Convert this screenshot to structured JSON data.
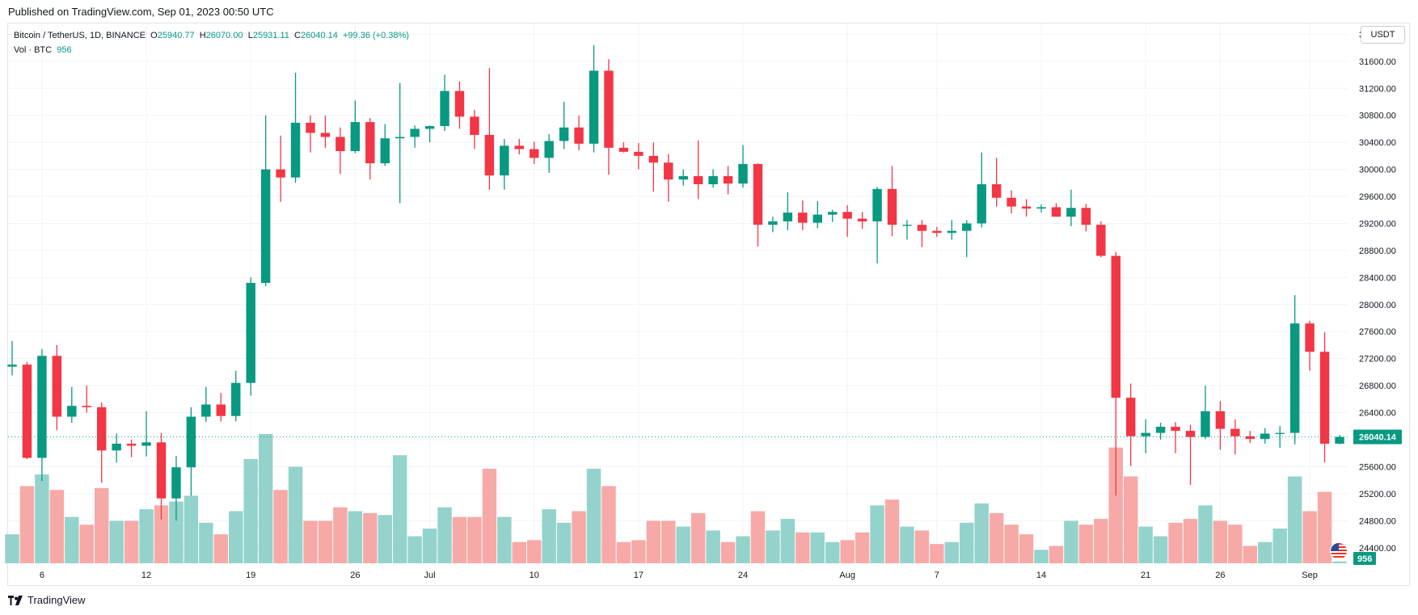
{
  "header": {
    "published": "Published on TradingView.com, Sep 01, 2023 00:50 UTC"
  },
  "legend": {
    "symbol": "Bitcoin / TetherUS, 1D, BINANCE",
    "o_label": "O",
    "o": "25940.77",
    "h_label": "H",
    "h": "26070.00",
    "l_label": "L",
    "l": "25931.11",
    "c_label": "C",
    "c": "26040.14",
    "change": "+99.36 (+0.38%)",
    "vol_label": "Vol · BTC",
    "vol": "956"
  },
  "currency_button": "USDT",
  "price_tag": "26040.14",
  "volume_tag": "956",
  "footer": {
    "brand": "TradingView"
  },
  "colors": {
    "up": "#089981",
    "down": "#f23645",
    "vol_up": "#93d3cb",
    "vol_down": "#f7a9a7",
    "grid": "#f0f3fa",
    "axis_text": "#131722"
  },
  "chart_data": {
    "type": "candlestick",
    "symbol": "Bitcoin / TetherUS",
    "interval": "1D",
    "exchange": "BINANCE",
    "y_axis": {
      "position": "right",
      "ticks": [
        24400,
        24800,
        25200,
        25600,
        26000,
        26400,
        26800,
        27200,
        27600,
        28000,
        28400,
        28800,
        29200,
        29600,
        30000,
        30400,
        30800,
        31200,
        31600,
        32000
      ],
      "tick_labels": [
        "24400.00",
        "24800.00",
        "25200.00",
        "25600.00",
        "26000.00",
        "26400.00",
        "26800.00",
        "27200.00",
        "27600.00",
        "28000.00",
        "28400.00",
        "28800.00",
        "29200.00",
        "29600.00",
        "30000.00",
        "30400.00",
        "30800.00",
        "31200.00",
        "31600.00",
        "32000.00"
      ],
      "range": [
        24170,
        32160
      ]
    },
    "x_axis": {
      "ticks": [
        {
          "index": 2,
          "label": "6"
        },
        {
          "index": 9,
          "label": "12"
        },
        {
          "index": 16,
          "label": "19"
        },
        {
          "index": 23,
          "label": "26"
        },
        {
          "index": 28,
          "label": "Jul"
        },
        {
          "index": 35,
          "label": "10"
        },
        {
          "index": 42,
          "label": "17"
        },
        {
          "index": 49,
          "label": "24"
        },
        {
          "index": 56,
          "label": "Aug"
        },
        {
          "index": 62,
          "label": "7"
        },
        {
          "index": 69,
          "label": "14"
        },
        {
          "index": 76,
          "label": "21"
        },
        {
          "index": 81,
          "label": "26"
        },
        {
          "index": 87,
          "label": "Sep"
        }
      ]
    },
    "grid": true,
    "last_price": 26040.14,
    "candles": [
      {
        "o": 27080,
        "h": 27460,
        "l": 26950,
        "c": 27110
      },
      {
        "o": 27110,
        "h": 27150,
        "l": 25710,
        "c": 25730
      },
      {
        "o": 25730,
        "h": 27340,
        "l": 25390,
        "c": 27240
      },
      {
        "o": 27240,
        "h": 27400,
        "l": 26140,
        "c": 26340
      },
      {
        "o": 26340,
        "h": 26780,
        "l": 26250,
        "c": 26500
      },
      {
        "o": 26500,
        "h": 26800,
        "l": 26400,
        "c": 26480
      },
      {
        "o": 26480,
        "h": 26550,
        "l": 25360,
        "c": 25840
      },
      {
        "o": 25840,
        "h": 26090,
        "l": 25660,
        "c": 25940
      },
      {
        "o": 25940,
        "h": 26000,
        "l": 25740,
        "c": 25910
      },
      {
        "o": 25910,
        "h": 26420,
        "l": 25750,
        "c": 25960
      },
      {
        "o": 25960,
        "h": 26100,
        "l": 24820,
        "c": 25130
      },
      {
        "o": 25130,
        "h": 25760,
        "l": 24800,
        "c": 25590
      },
      {
        "o": 25590,
        "h": 26480,
        "l": 25170,
        "c": 26340
      },
      {
        "o": 26340,
        "h": 26780,
        "l": 26260,
        "c": 26520
      },
      {
        "o": 26520,
        "h": 26690,
        "l": 26270,
        "c": 26350
      },
      {
        "o": 26350,
        "h": 27020,
        "l": 26270,
        "c": 26840
      },
      {
        "o": 26840,
        "h": 28400,
        "l": 26650,
        "c": 28320
      },
      {
        "o": 28320,
        "h": 30800,
        "l": 28270,
        "c": 30000
      },
      {
        "o": 30000,
        "h": 30500,
        "l": 29520,
        "c": 29880
      },
      {
        "o": 29880,
        "h": 31430,
        "l": 29800,
        "c": 30690
      },
      {
        "o": 30690,
        "h": 30800,
        "l": 30250,
        "c": 30540
      },
      {
        "o": 30540,
        "h": 30800,
        "l": 30320,
        "c": 30480
      },
      {
        "o": 30480,
        "h": 30620,
        "l": 29930,
        "c": 30270
      },
      {
        "o": 30270,
        "h": 31020,
        "l": 30240,
        "c": 30700
      },
      {
        "o": 30700,
        "h": 30760,
        "l": 29850,
        "c": 30090
      },
      {
        "o": 30090,
        "h": 30670,
        "l": 30050,
        "c": 30460
      },
      {
        "o": 30460,
        "h": 31280,
        "l": 29500,
        "c": 30480
      },
      {
        "o": 30480,
        "h": 30650,
        "l": 30320,
        "c": 30600
      },
      {
        "o": 30600,
        "h": 30650,
        "l": 30400,
        "c": 30640
      },
      {
        "o": 30640,
        "h": 31400,
        "l": 30570,
        "c": 31160
      },
      {
        "o": 31160,
        "h": 31300,
        "l": 30600,
        "c": 30780
      },
      {
        "o": 30780,
        "h": 30880,
        "l": 30300,
        "c": 30510
      },
      {
        "o": 30510,
        "h": 31500,
        "l": 29700,
        "c": 29910
      },
      {
        "o": 29910,
        "h": 30450,
        "l": 29700,
        "c": 30350
      },
      {
        "o": 30350,
        "h": 30450,
        "l": 30220,
        "c": 30300
      },
      {
        "o": 30300,
        "h": 30410,
        "l": 30080,
        "c": 30170
      },
      {
        "o": 30170,
        "h": 30520,
        "l": 29950,
        "c": 30420
      },
      {
        "o": 30420,
        "h": 31000,
        "l": 30300,
        "c": 30620
      },
      {
        "o": 30620,
        "h": 30800,
        "l": 30280,
        "c": 30380
      },
      {
        "o": 30380,
        "h": 31840,
        "l": 30250,
        "c": 31460
      },
      {
        "o": 31460,
        "h": 31630,
        "l": 29920,
        "c": 30320
      },
      {
        "o": 30320,
        "h": 30400,
        "l": 30250,
        "c": 30260
      },
      {
        "o": 30260,
        "h": 30390,
        "l": 30000,
        "c": 30200
      },
      {
        "o": 30200,
        "h": 30400,
        "l": 29670,
        "c": 30100
      },
      {
        "o": 30100,
        "h": 30230,
        "l": 29520,
        "c": 29850
      },
      {
        "o": 29850,
        "h": 30000,
        "l": 29760,
        "c": 29900
      },
      {
        "o": 29900,
        "h": 30430,
        "l": 29560,
        "c": 29780
      },
      {
        "o": 29780,
        "h": 30000,
        "l": 29730,
        "c": 29900
      },
      {
        "o": 29900,
        "h": 30050,
        "l": 29630,
        "c": 29790
      },
      {
        "o": 29790,
        "h": 30360,
        "l": 29730,
        "c": 30080
      },
      {
        "o": 30080,
        "h": 30090,
        "l": 28860,
        "c": 29180
      },
      {
        "o": 29180,
        "h": 29300,
        "l": 29070,
        "c": 29230
      },
      {
        "o": 29230,
        "h": 29660,
        "l": 29100,
        "c": 29360
      },
      {
        "o": 29360,
        "h": 29540,
        "l": 29100,
        "c": 29210
      },
      {
        "o": 29210,
        "h": 29530,
        "l": 29130,
        "c": 29330
      },
      {
        "o": 29330,
        "h": 29400,
        "l": 29220,
        "c": 29370
      },
      {
        "o": 29370,
        "h": 29470,
        "l": 29000,
        "c": 29270
      },
      {
        "o": 29270,
        "h": 29370,
        "l": 29120,
        "c": 29230
      },
      {
        "o": 29230,
        "h": 29740,
        "l": 28610,
        "c": 29710
      },
      {
        "o": 29710,
        "h": 30050,
        "l": 29010,
        "c": 29180
      },
      {
        "o": 29180,
        "h": 29250,
        "l": 28960,
        "c": 29180
      },
      {
        "o": 29180,
        "h": 29250,
        "l": 28850,
        "c": 29090
      },
      {
        "o": 29090,
        "h": 29150,
        "l": 29000,
        "c": 29060
      },
      {
        "o": 29060,
        "h": 29250,
        "l": 28960,
        "c": 29090
      },
      {
        "o": 29090,
        "h": 29250,
        "l": 28700,
        "c": 29200
      },
      {
        "o": 29200,
        "h": 30250,
        "l": 29140,
        "c": 29780
      },
      {
        "o": 29780,
        "h": 30170,
        "l": 29450,
        "c": 29580
      },
      {
        "o": 29580,
        "h": 29690,
        "l": 29350,
        "c": 29450
      },
      {
        "o": 29450,
        "h": 29560,
        "l": 29300,
        "c": 29420
      },
      {
        "o": 29420,
        "h": 29480,
        "l": 29360,
        "c": 29440
      },
      {
        "o": 29440,
        "h": 29500,
        "l": 29300,
        "c": 29300
      },
      {
        "o": 29300,
        "h": 29700,
        "l": 29160,
        "c": 29430
      },
      {
        "o": 29430,
        "h": 29490,
        "l": 29080,
        "c": 29180
      },
      {
        "o": 29180,
        "h": 29230,
        "l": 28700,
        "c": 28720
      },
      {
        "o": 28720,
        "h": 28780,
        "l": 25170,
        "c": 26620
      },
      {
        "o": 26620,
        "h": 26830,
        "l": 25610,
        "c": 26050
      },
      {
        "o": 26050,
        "h": 26300,
        "l": 25800,
        "c": 26100
      },
      {
        "o": 26100,
        "h": 26250,
        "l": 26000,
        "c": 26190
      },
      {
        "o": 26190,
        "h": 26260,
        "l": 25800,
        "c": 26130
      },
      {
        "o": 26130,
        "h": 26220,
        "l": 25330,
        "c": 26040
      },
      {
        "o": 26040,
        "h": 26800,
        "l": 26010,
        "c": 26420
      },
      {
        "o": 26420,
        "h": 26570,
        "l": 25850,
        "c": 26160
      },
      {
        "o": 26160,
        "h": 26300,
        "l": 25780,
        "c": 26050
      },
      {
        "o": 26050,
        "h": 26130,
        "l": 25950,
        "c": 26010
      },
      {
        "o": 26010,
        "h": 26170,
        "l": 25940,
        "c": 26090
      },
      {
        "o": 26090,
        "h": 26200,
        "l": 25880,
        "c": 26100
      },
      {
        "o": 26100,
        "h": 28140,
        "l": 25930,
        "c": 27720
      },
      {
        "o": 27720,
        "h": 27760,
        "l": 27020,
        "c": 27300
      },
      {
        "o": 27300,
        "h": 27590,
        "l": 25660,
        "c": 25940
      },
      {
        "o": 25940.77,
        "h": 26070.0,
        "l": 25931.11,
        "c": 26040.14
      }
    ],
    "volume": {
      "unit": "BTC",
      "max": 67000,
      "values": [
        15000,
        40000,
        46000,
        38000,
        24000,
        20000,
        39000,
        22000,
        22000,
        28000,
        30000,
        32000,
        35000,
        21000,
        15000,
        27000,
        54000,
        67000,
        38000,
        50000,
        22000,
        22000,
        29000,
        27000,
        26000,
        25000,
        56000,
        14000,
        18000,
        29000,
        24000,
        24000,
        49000,
        24000,
        11000,
        12000,
        28000,
        21000,
        27000,
        49000,
        40000,
        11000,
        12000,
        22000,
        22000,
        19000,
        26000,
        17000,
        11000,
        14000,
        27000,
        17000,
        23000,
        16000,
        16000,
        11000,
        12000,
        16000,
        30000,
        33000,
        19000,
        17000,
        10000,
        11000,
        21000,
        31000,
        26000,
        20000,
        15000,
        7000,
        9000,
        22000,
        20000,
        23000,
        60000,
        45000,
        19000,
        14000,
        21000,
        23000,
        30000,
        22000,
        20000,
        9000,
        11000,
        18000,
        45000,
        27000,
        37000,
        956
      ]
    }
  }
}
